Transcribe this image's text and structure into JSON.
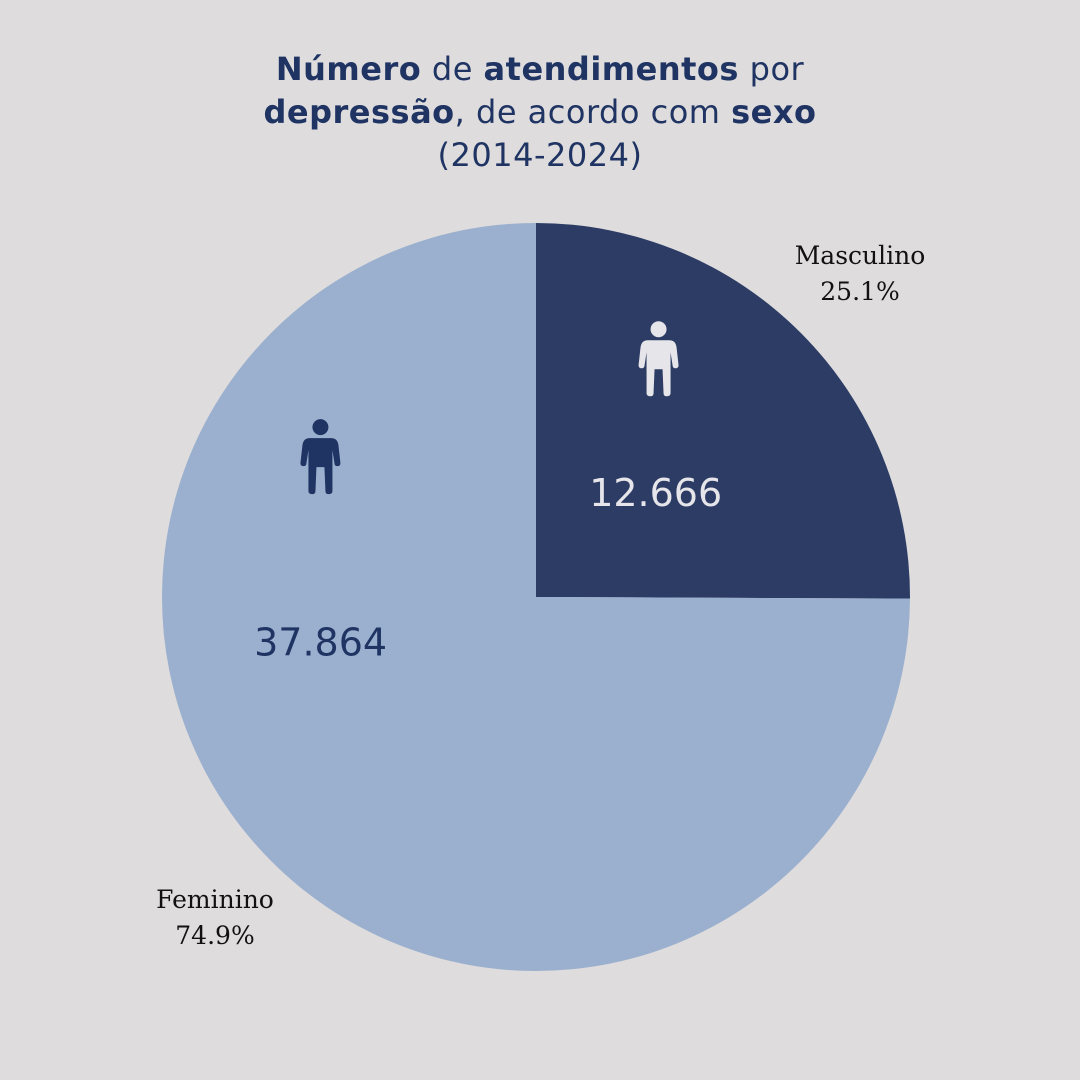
{
  "title": {
    "part1": "Número",
    "part2": " de ",
    "part3": "atendimentos",
    "part4": " por",
    "part5": "depressão",
    "part6": ", de acordo com ",
    "part7": "sexo",
    "part8": "(2014-2024)"
  },
  "colors": {
    "background": "#dedcdd",
    "masculino": "#2c3c64",
    "feminino": "#9bb0ce",
    "title": "#1f3463"
  },
  "chart_data": {
    "type": "pie",
    "title": "Número de atendimentos por depressão, de acordo com sexo (2014-2024)",
    "slices": [
      {
        "label": "Masculino",
        "value": 12666,
        "value_label": "12.666",
        "percent_label": "25.1%",
        "icon": "person-icon",
        "color": "#2c3c64",
        "text_color": "#e6e6ea"
      },
      {
        "label": "Feminino",
        "value": 37864,
        "value_label": "37.864",
        "percent_label": "74.9%",
        "icon": "person-icon",
        "color": "#9bb0ce",
        "text_color": "#1f3463"
      }
    ],
    "legend": "none"
  }
}
